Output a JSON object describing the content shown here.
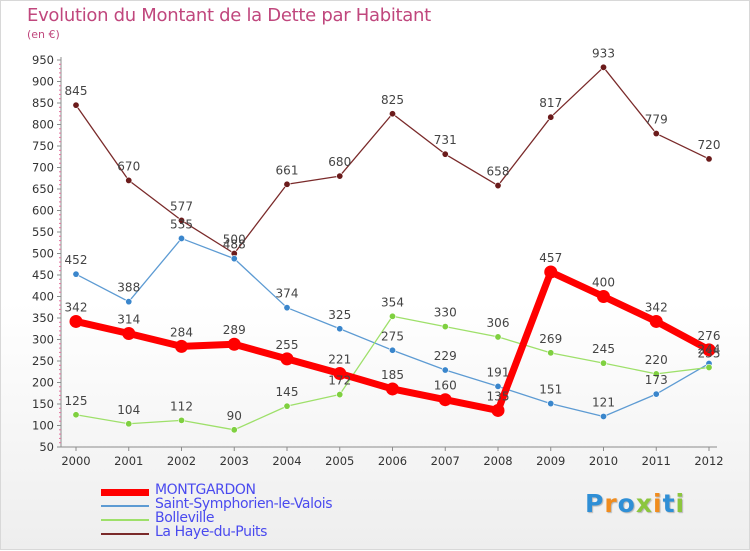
{
  "title": "Evolution du Montant de la Dette par Habitant",
  "subtitle": "(en €)",
  "logo": {
    "letters": [
      "P",
      "r",
      "o",
      "x",
      "i",
      "t",
      "i"
    ],
    "colors": [
      "#2f8fd6",
      "#f08c1e",
      "#2f8fd6",
      "#8cc63e",
      "#f08c1e",
      "#2f8fd6",
      "#8cc63e"
    ]
  },
  "chart_data": {
    "type": "line",
    "x": [
      "2000",
      "2001",
      "2002",
      "2003",
      "2004",
      "2005",
      "2006",
      "2007",
      "2008",
      "2009",
      "2010",
      "2011",
      "2012"
    ],
    "y_ticks": [
      50,
      100,
      150,
      200,
      250,
      300,
      350,
      400,
      450,
      500,
      550,
      600,
      650,
      700,
      750,
      800,
      850,
      900,
      950
    ],
    "ylim": [
      50,
      950
    ],
    "grid": false,
    "legend": "bottom-left",
    "series": [
      {
        "name": "MONTGARDON",
        "color": "#ff0000",
        "width": 7,
        "point_color": "#ff0000",
        "values": [
          342,
          314,
          284,
          289,
          255,
          221,
          185,
          160,
          135,
          457,
          400,
          342,
          276
        ],
        "labels": [
          "342",
          "314",
          "284",
          "289",
          "255",
          "221",
          "185",
          "160",
          "135",
          "457",
          "400",
          "342",
          "276"
        ]
      },
      {
        "name": "Saint-Symphorien-le-Valois",
        "color": "#5d9bd3",
        "width": 1.3,
        "point_color": "#3a86cc",
        "values": [
          452,
          388,
          535,
          488,
          374,
          325,
          275,
          229,
          191,
          151,
          121,
          173,
          244
        ],
        "labels": [
          "452",
          "388",
          "535",
          "488",
          "374",
          "325",
          "275",
          "229",
          "191",
          "151",
          "121",
          "173",
          "244"
        ]
      },
      {
        "name": "Bolleville",
        "color": "#9ee06a",
        "width": 1.3,
        "point_color": "#7fd040",
        "values": [
          125,
          104,
          112,
          90,
          145,
          172,
          354,
          330,
          306,
          269,
          245,
          220,
          235
        ],
        "labels": [
          "125",
          "104",
          "112",
          "90",
          "145",
          "172",
          "354",
          "330",
          "306",
          "269",
          "245",
          "220",
          "235"
        ]
      },
      {
        "name": "La Haye-du-Puits",
        "color": "#7a2a2a",
        "width": 1.3,
        "point_color": "#6b1b1b",
        "values": [
          845,
          670,
          577,
          500,
          661,
          680,
          825,
          731,
          658,
          817,
          933,
          779,
          720
        ],
        "labels": [
          "845",
          "670",
          "577",
          "500",
          "661",
          "680",
          "825",
          "731",
          "658",
          "817",
          "933",
          "779",
          "720"
        ]
      }
    ]
  }
}
